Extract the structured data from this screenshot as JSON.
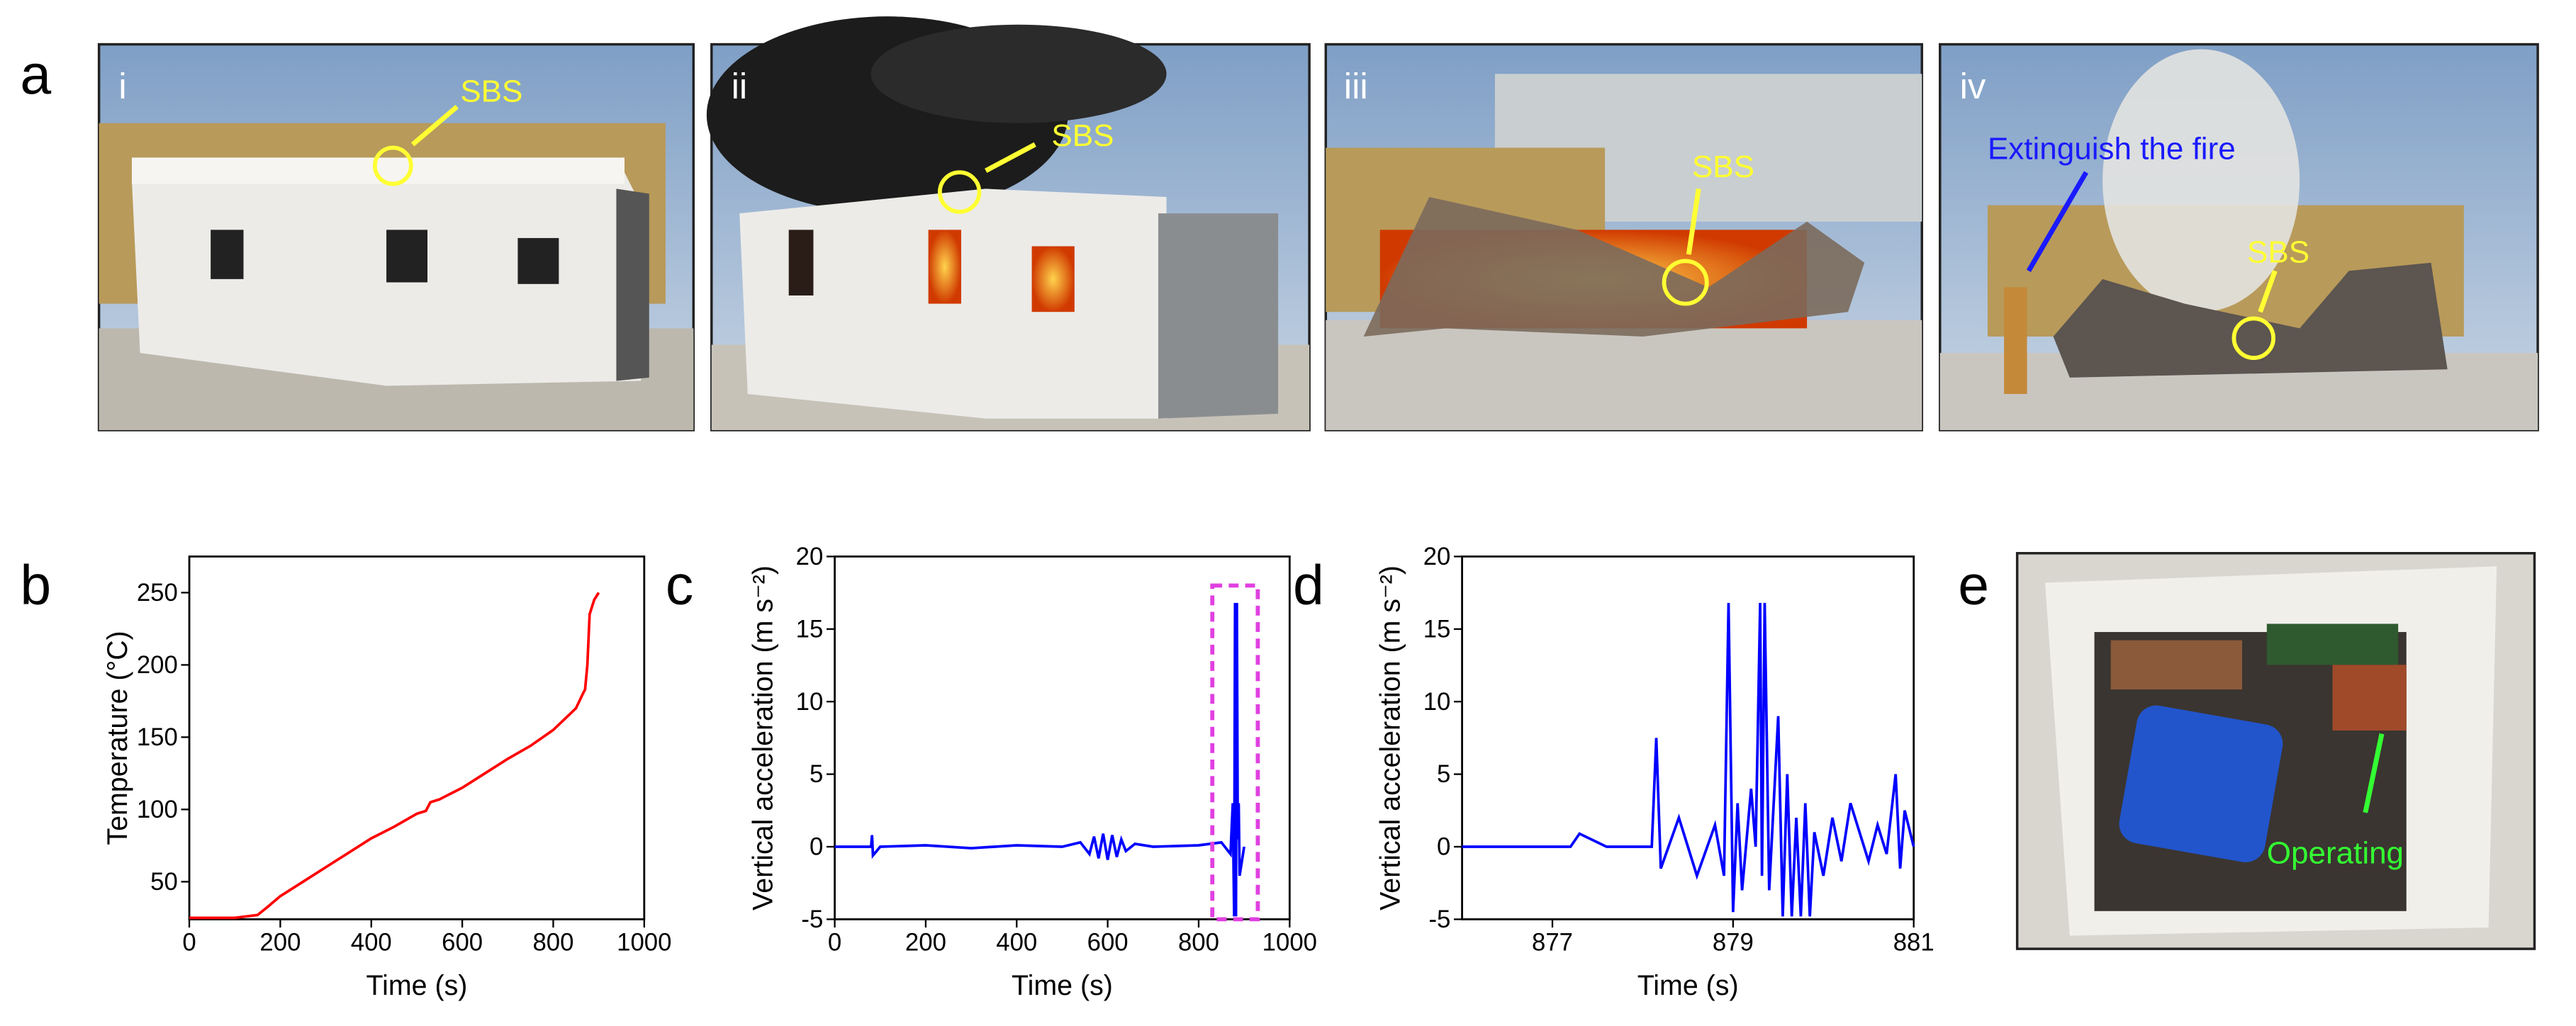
{
  "panel_a": {
    "label": "a",
    "photos": [
      {
        "label": "i",
        "annotations": [
          "SBS"
        ]
      },
      {
        "label": "ii",
        "annotations": [
          "SBS"
        ]
      },
      {
        "label": "iii",
        "annotations": [
          "SBS"
        ]
      },
      {
        "label": "iv",
        "annotations": [
          "Extinguish the fire",
          "SBS"
        ]
      }
    ]
  },
  "panel_e": {
    "label": "e",
    "annotation": "Operating"
  },
  "chart_data": [
    {
      "type": "line",
      "panel_label": "b",
      "xlabel": "Time (s)",
      "ylabel": "Temperature (°C)",
      "x": [
        0,
        100,
        150,
        170,
        200,
        250,
        300,
        350,
        400,
        450,
        500,
        520,
        530,
        550,
        600,
        650,
        700,
        750,
        800,
        850,
        865,
        870,
        875,
        880,
        890,
        900
      ],
      "values": [
        25,
        25,
        27,
        32,
        40,
        50,
        60,
        70,
        80,
        88,
        97,
        99,
        105,
        107,
        115,
        125,
        135,
        144,
        155,
        170,
        180,
        183,
        200,
        235,
        245,
        250
      ],
      "color": "#ff0000",
      "xlim": [
        0,
        1000
      ],
      "xticks": [
        0,
        200,
        400,
        600,
        800,
        1000
      ],
      "ylim": [
        24,
        275
      ],
      "yticks": [
        50,
        100,
        150,
        200,
        250
      ]
    },
    {
      "type": "line",
      "panel_label": "c",
      "xlabel": "Time (s)",
      "ylabel": "Vertical acceleration (m s⁻²)",
      "x": [
        0,
        80,
        82,
        84,
        100,
        200,
        300,
        400,
        500,
        540,
        560,
        570,
        580,
        590,
        600,
        610,
        620,
        630,
        640,
        660,
        700,
        800,
        850,
        870,
        875,
        878,
        880,
        882,
        884,
        886,
        888,
        890,
        900
      ],
      "values": [
        0,
        0,
        0.8,
        -0.6,
        0,
        0.1,
        -0.1,
        0.1,
        0,
        0.3,
        -0.5,
        0.7,
        -0.8,
        0.9,
        -0.9,
        0.8,
        -0.7,
        0.5,
        -0.3,
        0.2,
        0,
        0.1,
        0.3,
        -0.5,
        3,
        -4.8,
        16.8,
        -4.8,
        16.8,
        0.5,
        3,
        -2,
        0
      ],
      "color": "#0000ff",
      "xlim": [
        0,
        1000
      ],
      "xticks": [
        0,
        200,
        400,
        600,
        800,
        1000
      ],
      "ylim": [
        -5,
        20
      ],
      "yticks": [
        -5,
        0,
        5,
        10,
        15,
        20
      ],
      "highlight_box": {
        "xlim": [
          830,
          930
        ],
        "ylim": [
          -5,
          18
        ],
        "color": "#e040e0"
      }
    },
    {
      "type": "line",
      "panel_label": "d",
      "xlabel": "Time (s)",
      "ylabel": "Vertical acceleration (m s⁻²)",
      "x": [
        876,
        876.5,
        877,
        877.2,
        877.3,
        877.6,
        878,
        878.1,
        878.15,
        878.2,
        878.4,
        878.6,
        878.8,
        878.9,
        878.95,
        879,
        879.05,
        879.1,
        879.2,
        879.25,
        879.3,
        879.32,
        879.35,
        879.4,
        879.5,
        879.55,
        879.6,
        879.65,
        879.7,
        879.75,
        879.8,
        879.85,
        879.9,
        880,
        880.1,
        880.2,
        880.3,
        880.5,
        880.6,
        880.7,
        880.8,
        880.85,
        880.9,
        881
      ],
      "values": [
        0,
        0,
        0,
        0,
        0.9,
        0,
        0,
        0,
        7.5,
        -1.5,
        2,
        -2,
        1.5,
        -2,
        16.8,
        -4.5,
        3,
        -3,
        4,
        0,
        16.8,
        -2,
        16.8,
        -3,
        9,
        -4.8,
        5,
        -4.8,
        2,
        -4.8,
        3,
        -4.8,
        1,
        -2,
        2,
        -1,
        3,
        -1,
        1.5,
        -0.5,
        5,
        -1.5,
        2.5,
        0
      ],
      "color": "#0000ff",
      "xlim": [
        876,
        881
      ],
      "xticks": [
        877,
        879,
        881
      ],
      "ylim": [
        -5,
        20
      ],
      "yticks": [
        -5,
        0,
        5,
        10,
        15,
        20
      ]
    }
  ]
}
